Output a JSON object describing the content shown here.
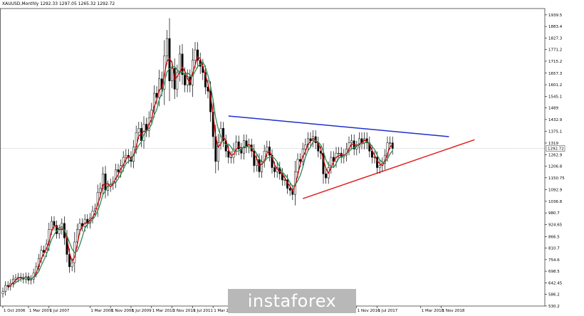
{
  "header": {
    "info": "XAUUSD,Monthly 1292.33 1297.05 1265.32 1292.72"
  },
  "watermark": "instaforex",
  "price_label": "1292.72",
  "colors": {
    "bull_candle": "#000000",
    "bear_candle": "#000000",
    "ma_fast": "#2e8b57",
    "ma_slow": "#cc0000",
    "resistance": "#1f2fcf",
    "support": "#e02020",
    "axis_text": "#000000",
    "grid": "#e6e6e6"
  },
  "chart_data": {
    "type": "candlestick",
    "symbol": "XAUUSD",
    "timeframe": "Monthly",
    "ylim": [
      530,
      1970
    ],
    "y_ticks": [
      530.2,
      586.2,
      642.45,
      698.5,
      754.6,
      810.7,
      866.5,
      924.65,
      980.7,
      1036.8,
      1092.9,
      1150.75,
      1206.8,
      1262.9,
      1319.0,
      1375.1,
      1432.9,
      1489.0,
      1545.1,
      1601.2,
      1657.3,
      1715.2,
      1771.2,
      1827.3,
      1883.4,
      1939.5
    ],
    "x_tick_labels": [
      "1 Oct 2006",
      "1 Mar 2007",
      "1 Jul 2007",
      "1 Mar 2008",
      "1 Nov 2008",
      "1 Jul 2009",
      "1 Mar 2010",
      "1 Nov 2010",
      "1 Jul 2011",
      "1 Mar 2012",
      "1 Nov 2016",
      "1 Jul 2017",
      "1 Mar 2018",
      "1 Nov 2018"
    ],
    "last_price": 1292.72,
    "series_close": [
      600,
      630,
      625,
      640,
      660,
      665,
      670,
      668,
      660,
      672,
      655,
      660,
      690,
      720,
      760,
      800,
      790,
      830,
      900,
      940,
      920,
      880,
      900,
      930,
      860,
      780,
      720,
      740,
      840,
      900,
      930,
      915,
      950,
      930,
      955,
      990,
      1000,
      1080,
      1100,
      1170,
      1090,
      1110,
      1120,
      1130,
      1190,
      1180,
      1210,
      1250,
      1260,
      1250,
      1230,
      1300,
      1370,
      1390,
      1330,
      1410,
      1380,
      1440,
      1480,
      1560,
      1540,
      1630,
      1580,
      1740,
      1825,
      1620,
      1680,
      1580,
      1660,
      1750,
      1650,
      1600,
      1640,
      1600,
      1720,
      1770,
      1720,
      1690,
      1660,
      1590,
      1570,
      1470,
      1350,
      1230,
      1320,
      1390,
      1330,
      1280,
      1250,
      1250,
      1290,
      1325,
      1290,
      1270,
      1330,
      1300,
      1310,
      1280,
      1210,
      1240,
      1180,
      1230,
      1280,
      1300,
      1260,
      1200,
      1180,
      1200,
      1170,
      1140,
      1140,
      1100,
      1090,
      1070,
      1180,
      1240,
      1230,
      1290,
      1310,
      1340,
      1330,
      1350,
      1320,
      1280,
      1270,
      1170,
      1150,
      1200,
      1250,
      1230,
      1270,
      1270,
      1250,
      1260,
      1290,
      1320,
      1330,
      1290,
      1300,
      1340,
      1320,
      1340,
      1320,
      1280,
      1250,
      1250,
      1200,
      1210,
      1220,
      1260,
      1320,
      1320,
      1293
    ]
  },
  "overlays": {
    "ma_fast_period": 5,
    "ma_slow_period": 3,
    "resistance_line": {
      "from_bar": 88,
      "to_bar": 174,
      "from_price": 1450,
      "to_price": 1350
    },
    "support_line": {
      "from_bar": 117,
      "to_bar": 184,
      "from_price": 1050,
      "to_price": 1335
    }
  }
}
